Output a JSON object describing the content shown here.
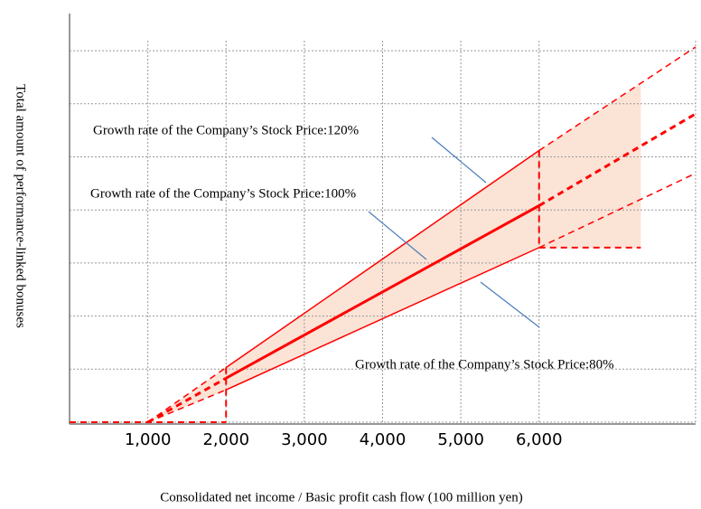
{
  "chart_data": {
    "type": "line",
    "x_label": "Consolidated net income / Basic profit cash flow (100 million yen)",
    "y_label": "Total amount of performance-linked bonuses",
    "xlim": [
      0,
      8000
    ],
    "ylim": [
      0,
      7.7
    ],
    "xticks": [
      {
        "value": 1000,
        "label": "1,000"
      },
      {
        "value": 2000,
        "label": "2,000"
      },
      {
        "value": 3000,
        "label": "3,000"
      },
      {
        "value": 4000,
        "label": "4,000"
      },
      {
        "value": 5000,
        "label": "5,000"
      },
      {
        "value": 6000,
        "label": "6,000"
      }
    ],
    "yticks": [
      0,
      1,
      2,
      3,
      4,
      5,
      6,
      7
    ],
    "grid": true,
    "color": "#ff0000",
    "fill_color": "#fbe3d6",
    "line_styles": [
      "dashed",
      "solid",
      "dashed"
    ],
    "series": [
      {
        "name": "Growth rate of the Company’s Stock Price:120%",
        "x": [
          1000,
          2000,
          6000,
          8000
        ],
        "values": [
          0,
          1.03,
          5.12,
          7.07
        ],
        "width": 1.5
      },
      {
        "name": "Growth rate of the Company’s Stock Price:100%",
        "x": [
          1000,
          2000,
          6000,
          8000
        ],
        "values": [
          0,
          0.83,
          4.08,
          5.81
        ],
        "width": 3
      },
      {
        "name": "Growth rate of the Company’s Stock Price:80%",
        "x": [
          1000,
          2000,
          6000,
          8000
        ],
        "values": [
          0,
          0.61,
          3.29,
          4.69
        ],
        "width": 1.5
      }
    ],
    "floor": {
      "x": [
        0,
        2000
      ],
      "values": [
        0,
        0
      ]
    },
    "cap": {
      "x": [
        6000,
        7300
      ],
      "values": [
        3.29,
        3.29
      ]
    }
  }
}
